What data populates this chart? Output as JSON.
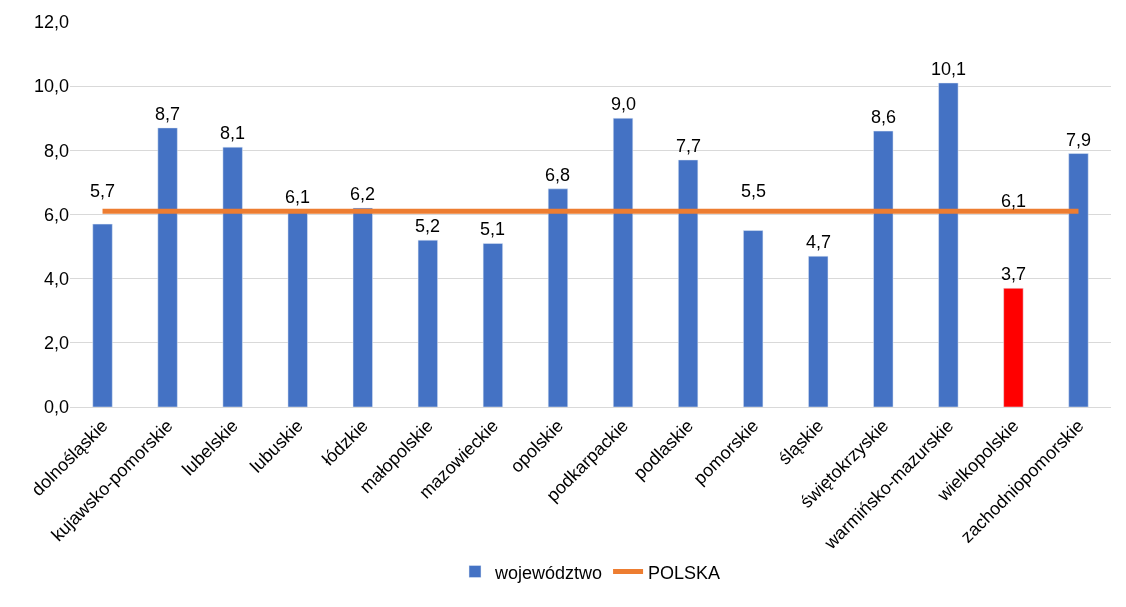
{
  "chart_data": {
    "type": "bar",
    "categories": [
      "dolnośląskie",
      "kujawsko-pomorskie",
      "lubelskie",
      "lubuskie",
      "łódzkie",
      "małopolskie",
      "mazowieckie",
      "opolskie",
      "podkarpackie",
      "podlaskie",
      "pomorskie",
      "śląskie",
      "świętokrzyskie",
      "warmińsko-mazurskie",
      "wielkopolskie",
      "zachodniopomorskie"
    ],
    "series": [
      {
        "name": "województwo",
        "color": "#4472c4",
        "colors": [
          "#4472c4",
          "#4472c4",
          "#4472c4",
          "#4472c4",
          "#4472c4",
          "#4472c4",
          "#4472c4",
          "#4472c4",
          "#4472c4",
          "#4472c4",
          "#4472c4",
          "#4472c4",
          "#4472c4",
          "#4472c4",
          "#ff0000",
          "#4472c4"
        ],
        "values": [
          5.7,
          8.7,
          8.1,
          6.1,
          6.2,
          5.2,
          5.1,
          6.8,
          9.0,
          7.7,
          5.5,
          4.7,
          8.6,
          10.1,
          3.7,
          7.9
        ],
        "value_labels": [
          "5,7",
          "8,7",
          "8,1",
          "6,1",
          "6,2",
          "5,2",
          "5,1",
          "6,8",
          "9,0",
          "7,7",
          "5,5",
          "4,7",
          "8,6",
          "10,1",
          "3,7",
          "7,9"
        ]
      },
      {
        "name": "POLSKA",
        "type": "line",
        "color": "#ed7d31",
        "values": [
          6.1,
          6.1,
          6.1,
          6.1,
          6.1,
          6.1,
          6.1,
          6.1,
          6.1,
          6.1,
          6.1,
          6.1,
          6.1,
          6.1,
          6.1,
          6.1
        ],
        "value_labels": [
          null,
          null,
          null,
          null,
          null,
          null,
          null,
          null,
          null,
          null,
          null,
          null,
          null,
          null,
          "6,1",
          null
        ]
      }
    ],
    "ylim": [
      0,
      12
    ],
    "yticks": [
      {
        "value": 0,
        "label": "0,0"
      },
      {
        "value": 2,
        "label": "2,0"
      },
      {
        "value": 4,
        "label": "4,0"
      },
      {
        "value": 6,
        "label": "6,0"
      },
      {
        "value": 8,
        "label": "8,0"
      },
      {
        "value": 10,
        "label": "10,0"
      },
      {
        "value": 12,
        "label": "12,0"
      }
    ],
    "grid": "y",
    "legend": "bottom",
    "marker": "none",
    "line_style": "solid"
  }
}
